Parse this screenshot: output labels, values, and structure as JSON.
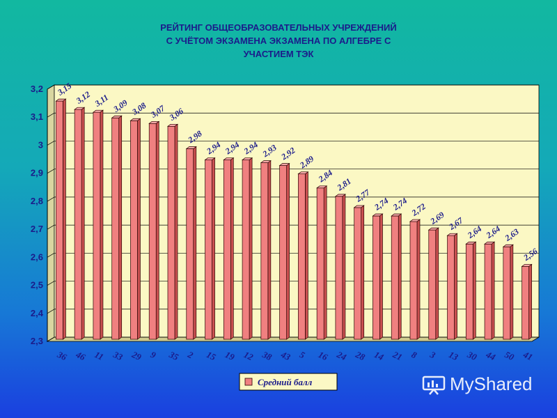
{
  "title_lines": [
    "РЕЙТИНГ ОБЩЕОБРАЗОВАТЕЛЬНЫХ УЧРЕЖДЕНИЙ",
    "С УЧЁТОМ ЭКЗАМЕНА ЭКЗАМЕНА ПО АЛГЕБРЕ С",
    "УЧАСТИЕМ ТЭК"
  ],
  "chart_data": {
    "type": "bar",
    "categories": [
      "36",
      "46",
      "11",
      "33",
      "29",
      "9",
      "35",
      "2",
      "15",
      "19",
      "12",
      "38",
      "43",
      "5",
      "16",
      "24",
      "28",
      "14",
      "21",
      "8",
      "3",
      "13",
      "30",
      "44",
      "50",
      "41"
    ],
    "series": [
      {
        "name": "Средний балл",
        "values": [
          3.15,
          3.12,
          3.11,
          3.09,
          3.08,
          3.07,
          3.06,
          2.98,
          2.94,
          2.94,
          2.94,
          2.93,
          2.92,
          2.89,
          2.84,
          2.81,
          2.77,
          2.74,
          2.74,
          2.72,
          2.69,
          2.67,
          2.64,
          2.64,
          2.63,
          2.56
        ]
      }
    ],
    "value_labels": [
      "3,15",
      "3,12",
      "3,11",
      "3,09",
      "3,08",
      "3,07",
      "3,06",
      "2,98",
      "2,94",
      "2,94",
      "2,94",
      "2,93",
      "2,92",
      "2,89",
      "2,84",
      "2,81",
      "2,77",
      "2,74",
      "2,74",
      "2,72",
      "2,69",
      "2,67",
      "2,64",
      "2,64",
      "2,63",
      "2,56"
    ],
    "y_ticks": [
      "2,3",
      "2,4",
      "2,5",
      "2,6",
      "2,7",
      "2,8",
      "2,9",
      "3",
      "3,1",
      "3,2"
    ],
    "ylim": [
      2.3,
      3.2
    ],
    "grid": true,
    "legend_position": "bottom-center",
    "colors": {
      "plot_bg": "#fbf8c4",
      "bar_front": "#f08080",
      "bar_side": "#c95050",
      "bar_top": "#f6a9a9",
      "bar_stroke": "#2a0000",
      "grid": "#000000",
      "text": "#1b1b8a"
    }
  },
  "watermark": {
    "text": "MyShared"
  }
}
